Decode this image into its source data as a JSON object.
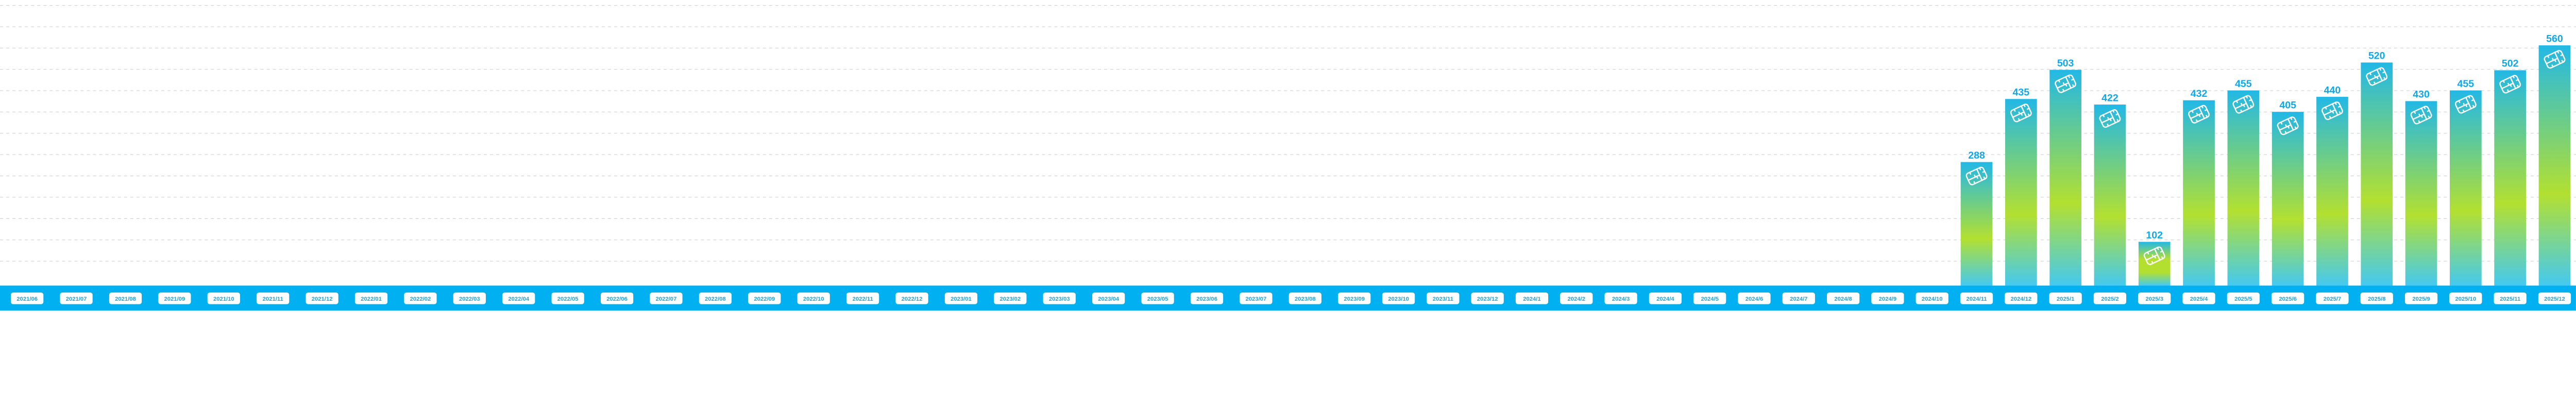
{
  "chart_data": {
    "type": "bar",
    "title": "",
    "xlabel": "",
    "ylabel": "",
    "ylim": [
      0,
      650
    ],
    "grid": true,
    "grid_style": "dashed horizontal",
    "legend": "none",
    "categories": [
      "2021/06",
      "2021/07",
      "2021/08",
      "2021/09",
      "2021/10",
      "2021/11",
      "2021/12",
      "2022/01",
      "2022/02",
      "2022/03",
      "2022/04",
      "2022/05",
      "2022/06",
      "2022/07",
      "2022/08",
      "2022/09",
      "2022/10",
      "2022/11",
      "2022/12",
      "2023/01",
      "2023/02",
      "2023/03",
      "2023/04",
      "2023/05",
      "2023/06",
      "2023/07",
      "2023/08",
      "2023/09",
      "2023/10",
      "2023/11",
      "2023/12",
      "2024/1",
      "2024/2",
      "2024/3",
      "2024/4",
      "2024/5",
      "2024/6",
      "2024/7",
      "2024/8",
      "2024/9",
      "2024/10",
      "2024/11",
      "2024/12",
      "2025/1",
      "2025/2",
      "2025/3",
      "2025/4",
      "2025/5",
      "2025/6",
      "2025/7",
      "2025/8",
      "2025/9",
      "2025/10",
      "2025/11",
      "2025/12"
    ],
    "values": [
      null,
      null,
      null,
      null,
      null,
      null,
      null,
      null,
      null,
      null,
      null,
      null,
      null,
      null,
      null,
      null,
      null,
      null,
      null,
      null,
      null,
      null,
      null,
      null,
      null,
      null,
      null,
      null,
      null,
      null,
      null,
      null,
      null,
      null,
      null,
      null,
      null,
      null,
      null,
      null,
      null,
      288,
      435,
      503,
      422,
      102,
      432,
      455,
      405,
      440,
      520,
      430,
      455,
      502,
      560
    ],
    "bar_icon": "sim-card-icon",
    "colors": {
      "bar_top": "#22b8e6",
      "bar_mid": "#b3e030",
      "bar_bottom": "#45c9f0",
      "value_label": "#0fa8e8",
      "axis_band": "#00b0f0",
      "tick_label_bg": "#ffffff",
      "tick_label_text": "#18a6e0",
      "grid": "#d0d0d0"
    }
  }
}
